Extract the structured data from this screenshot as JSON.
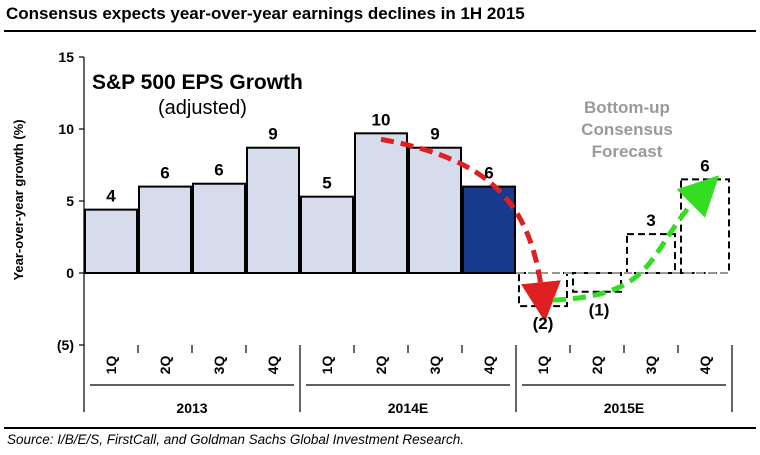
{
  "headline": "Consensus expects year-over-year earnings declines in 1H 2015",
  "source": "Source: I/B/E/S, FirstCall, and Goldman Sachs Global Investment Research.",
  "forecast_label": [
    "Bottom-up",
    "Consensus",
    "Forecast"
  ],
  "colors": {
    "bar_fill": "#d6dcec",
    "bar_highlight": "#173a8f",
    "red_arrow": "#e02020",
    "green_arrow": "#33dd22",
    "forecast_text": "#9a9a9a"
  },
  "chart_data": {
    "type": "bar",
    "title": "S&P 500 EPS Growth",
    "subtitle": "(adjusted)",
    "ylabel": "Year-over-year growth (%)",
    "xlabel": "",
    "ylim": [
      -5,
      15
    ],
    "yticks": [
      -5,
      0,
      5,
      10,
      15
    ],
    "ytick_labels": [
      "(5)",
      "0",
      "5",
      "10",
      "15"
    ],
    "categories": [
      "1Q",
      "2Q",
      "3Q",
      "4Q",
      "1Q",
      "2Q",
      "3Q",
      "4Q",
      "1Q",
      "2Q",
      "3Q",
      "4Q"
    ],
    "groups": [
      {
        "label": "2013",
        "start": 0,
        "end": 3
      },
      {
        "label": "2014E",
        "start": 4,
        "end": 7
      },
      {
        "label": "2015E",
        "start": 8,
        "end": 11
      }
    ],
    "series": [
      {
        "name": "S&P 500 EPS Growth",
        "values": [
          4.4,
          6.0,
          6.2,
          8.7,
          5.3,
          9.7,
          8.7,
          6.0,
          -2.3,
          -1.3,
          2.7,
          6.5
        ],
        "labels": [
          "4",
          "6",
          "6",
          "9",
          "5",
          "10",
          "9",
          "6",
          "(2)",
          "(1)",
          "3",
          "6"
        ],
        "styles": [
          "actual",
          "actual",
          "actual",
          "actual",
          "actual",
          "actual",
          "actual",
          "highlight",
          "forecast",
          "forecast",
          "forecast",
          "forecast"
        ]
      }
    ],
    "annotations": [
      {
        "type": "arrow",
        "color": "red",
        "from_index": 5,
        "to_index": 8
      },
      {
        "type": "arrow",
        "color": "green",
        "from_index": 8,
        "to_index": 11
      }
    ]
  }
}
